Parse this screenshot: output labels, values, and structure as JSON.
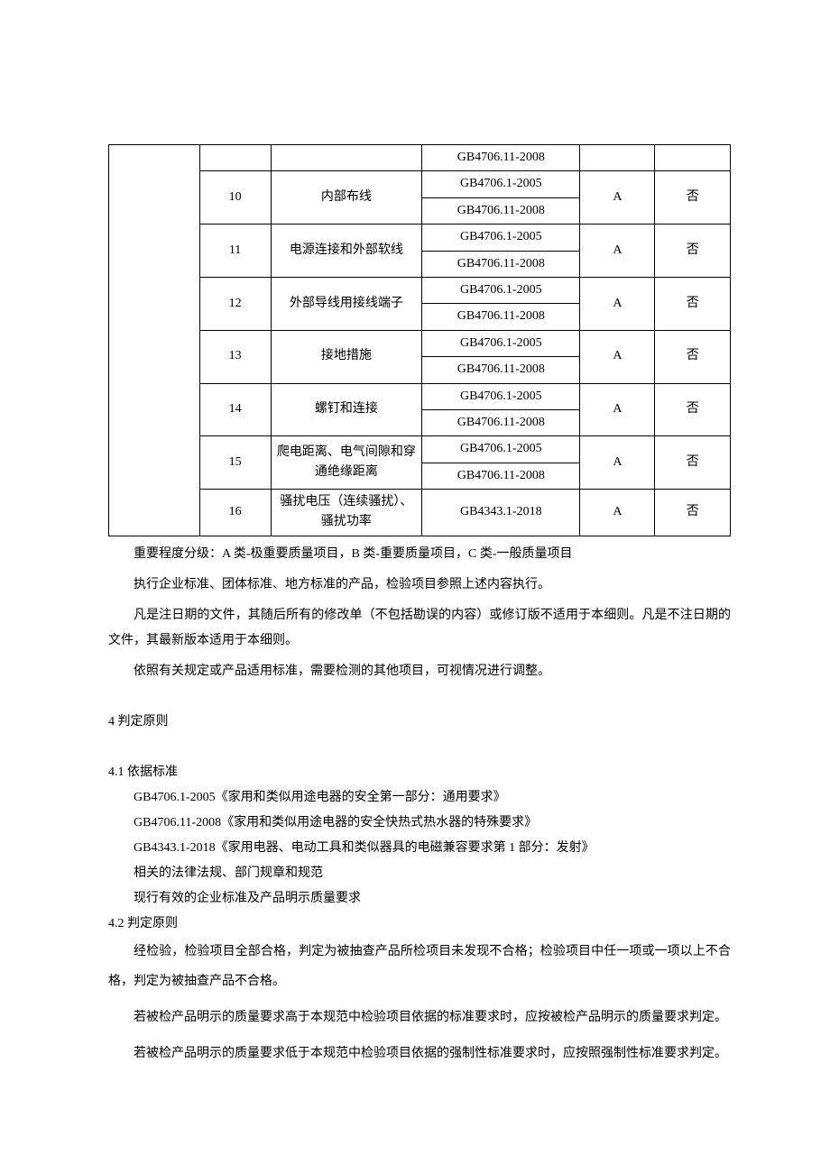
{
  "table": {
    "rows": [
      {
        "num": "",
        "name": "",
        "std": [
          "GB4706.11-2008"
        ],
        "grade": "",
        "flag": ""
      },
      {
        "num": "10",
        "name": "内部布线",
        "std": [
          "GB4706.1-2005",
          "GB4706.11-2008"
        ],
        "grade": "A",
        "flag": "否"
      },
      {
        "num": "11",
        "name": "电源连接和外部软线",
        "std": [
          "GB4706.1-2005",
          "GB4706.11-2008"
        ],
        "grade": "A",
        "flag": "否"
      },
      {
        "num": "12",
        "name": "外部导线用接线端子",
        "std": [
          "GB4706.1-2005",
          "GB4706.11-2008"
        ],
        "grade": "A",
        "flag": "否"
      },
      {
        "num": "13",
        "name": "接地措施",
        "std": [
          "GB4706.1-2005",
          "GB4706.11-2008"
        ],
        "grade": "A",
        "flag": "否"
      },
      {
        "num": "14",
        "name": "螺钉和连接",
        "std": [
          "GB4706.1-2005",
          "GB4706.11-2008"
        ],
        "grade": "A",
        "flag": "否"
      },
      {
        "num": "15",
        "name": "爬电距离、电气间隙和穿通绝缘距离",
        "std": [
          "GB4706.1-2005",
          "GB4706.11-2008"
        ],
        "grade": "A",
        "flag": "否"
      },
      {
        "num": "16",
        "name": "骚扰电压（连续骚扰）、骚扰功率",
        "std": [
          "GB4343.1-2018"
        ],
        "grade": "A",
        "flag": "否"
      }
    ]
  },
  "notes": {
    "p1": "重要程度分级：A 类-极重要质量项目，B 类-重要质量项目，C 类-一般质量项目",
    "p2": "执行企业标准、团体标准、地方标准的产品，检验项目参照上述内容执行。",
    "p3": "凡是注日期的文件，其随后所有的修改单（不包括勘误的内容）或修订版不适用于本细则。凡是不注日期的文件，其最新版本适用于本细则。",
    "p4": "依照有关规定或产品适用标准，需要检测的其他项目，可视情况进行调整。"
  },
  "sec4": {
    "title": "4 判定原则",
    "s41_title": "4.1  依据标准",
    "s41_lines": [
      "GB4706.1-2005《家用和类似用途电器的安全第一部分：通用要求》",
      "GB4706.11-2008《家用和类似用途电器的安全快热式热水器的特殊要求》",
      "GB4343.1-2018《家用电器、电动工具和类似器具的电磁兼容要求第 1 部分：发射》",
      "相关的法律法规、部门规章和规范",
      "现行有效的企业标准及产品明示质量要求"
    ],
    "s42_title": "4.2  判定原则",
    "s42_p1": "经检验，检验项目全部合格，判定为被抽查产品所检项目未发现不合格；检验项目中任一项或一项以上不合格，判定为被抽查产品不合格。",
    "s42_p2": "若被检产品明示的质量要求高于本规范中检验项目依据的标准要求时，应按被检产品明示的质量要求判定。",
    "s42_p3": "若被检产品明示的质量要求低于本规范中检验项目依据的强制性标准要求时，应按照强制性标准要求判定。"
  }
}
